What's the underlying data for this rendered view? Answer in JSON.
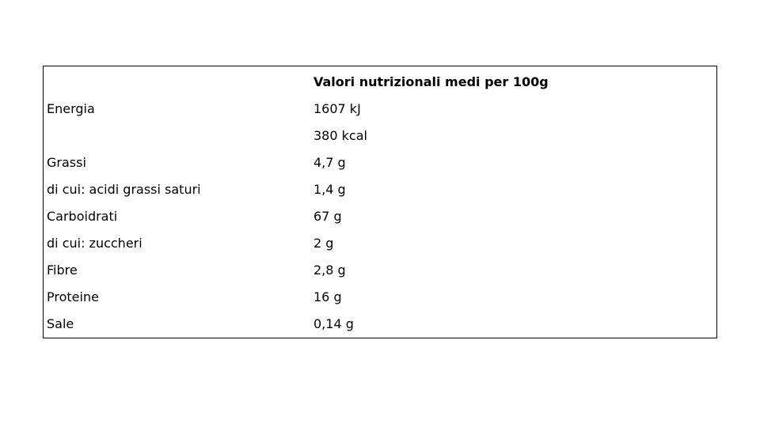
{
  "table": {
    "header": "Valori nutrizionali medi per 100g",
    "rows": [
      {
        "label": "Energia",
        "value": "1607 kJ"
      },
      {
        "value": "380 kcal"
      },
      {
        "label": "Grassi",
        "value": "4,7 g"
      },
      {
        "label": "di cui: acidi grassi saturi",
        "value": "1,4 g"
      },
      {
        "label": "Carboidrati",
        "value": "67 g"
      },
      {
        "label": "di cui: zuccheri",
        "value": "2 g"
      },
      {
        "label": "Fibre",
        "value": "2,8 g"
      },
      {
        "label": "Proteine",
        "value": "16 g"
      },
      {
        "label": "Sale",
        "value": "0,14 g"
      }
    ]
  }
}
